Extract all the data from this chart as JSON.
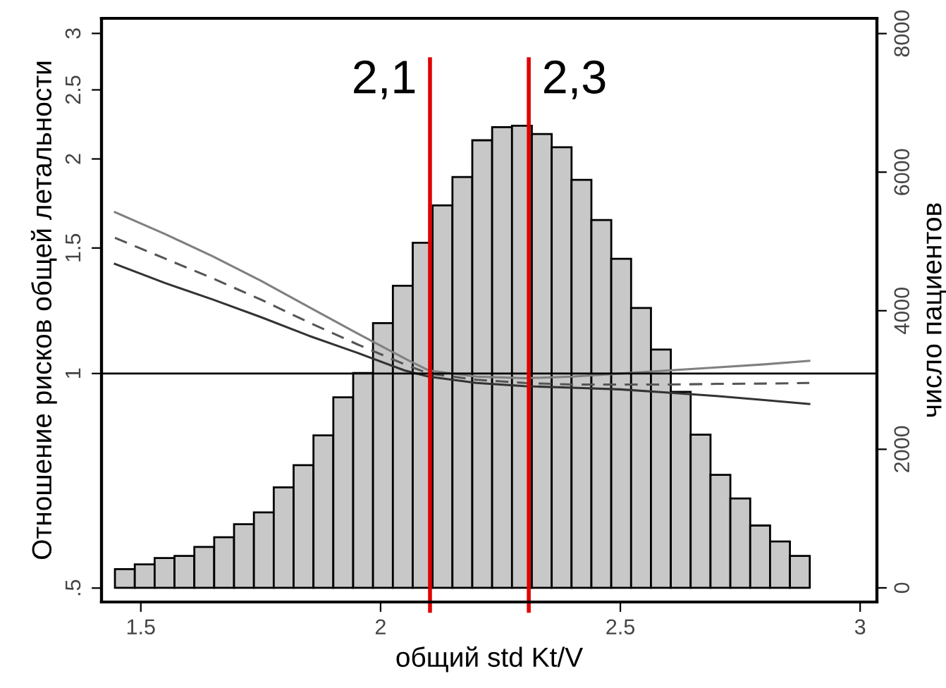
{
  "chart_data": {
    "type": "histogram",
    "xlabel": "общий std Kt/V",
    "ylabel": "Отношение рисков общей летальности",
    "y2label": "число пациентов",
    "xlim": [
      1.418,
      3.035
    ],
    "xticks": [
      1.5,
      2,
      {
        "value": 2.5,
        "label": "2.5"
      },
      3
    ],
    "log": "y",
    "ylim": [
      0.478,
      3.15
    ],
    "yticks": [
      {
        "value": 0.5,
        "label": ".5"
      },
      1,
      1.5,
      2,
      2.5,
      3
    ],
    "y2lim": [
      -204,
      8220
    ],
    "y2ticks": [
      0,
      2000,
      4000,
      6000,
      8000
    ],
    "grid": false,
    "series": [
      {
        "axis": "y2",
        "color": "#c8c8c8",
        "bins": [
          1.446,
          1.4874,
          1.5288,
          1.5702,
          1.6116,
          1.653,
          1.6944,
          1.7358,
          1.7772,
          1.8186,
          1.86,
          1.9014,
          1.9428,
          1.9842,
          2.0256,
          2.067,
          2.1084,
          2.1498,
          2.1912,
          2.2326,
          2.274,
          2.3154,
          2.3568,
          2.3982,
          2.4396,
          2.481,
          2.5224,
          2.5638,
          2.6052,
          2.6466,
          2.688,
          2.7294,
          2.7708,
          2.8122,
          2.8536,
          2.895
        ],
        "values": [
          270,
          340,
          430,
          460,
          590,
          730,
          920,
          1090,
          1450,
          1770,
          2200,
          2750,
          3100,
          3820,
          4360,
          4980,
          5520,
          5930,
          6460,
          6650,
          6670,
          6550,
          6360,
          5890,
          5310,
          4750,
          4040,
          3440,
          2830,
          2210,
          1630,
          1290,
          900,
          670,
          460
        ]
      },
      {
        "type": "line",
        "color": "#808080",
        "line_style": "solid",
        "x": [
          1.446,
          1.55,
          1.65,
          1.75,
          1.85,
          1.95,
          2.05,
          2.1,
          2.2,
          2.3,
          2.4,
          2.5,
          2.6,
          2.7,
          2.8,
          2.894
        ],
        "values": [
          1.684,
          1.57,
          1.46,
          1.35,
          1.24,
          1.14,
          1.05,
          1.01,
          0.99,
          0.985,
          0.99,
          1.0,
          1.01,
          1.02,
          1.03,
          1.042
        ]
      },
      {
        "type": "line",
        "color": "#555555",
        "line_style": "dashed",
        "x": [
          1.446,
          1.55,
          1.65,
          1.75,
          1.85,
          1.95,
          2.05,
          2.1,
          2.2,
          2.3,
          2.4,
          2.5,
          2.6,
          2.7,
          2.8,
          2.894
        ],
        "values": [
          1.55,
          1.45,
          1.36,
          1.27,
          1.18,
          1.1,
          1.03,
          1.0,
          0.98,
          0.97,
          0.965,
          0.965,
          0.965,
          0.967,
          0.968,
          0.97
        ]
      },
      {
        "type": "line",
        "color": "#333333",
        "line_style": "solid",
        "x": [
          1.446,
          1.55,
          1.65,
          1.75,
          1.85,
          1.95,
          2.05,
          2.1,
          2.2,
          2.3,
          2.4,
          2.5,
          2.6,
          2.7,
          2.8,
          2.894
        ],
        "values": [
          1.425,
          1.34,
          1.27,
          1.2,
          1.13,
          1.07,
          1.01,
          0.99,
          0.97,
          0.96,
          0.955,
          0.95,
          0.94,
          0.93,
          0.918,
          0.906
        ]
      }
    ],
    "ref_lines": [
      {
        "axis": "y",
        "value": 1,
        "color": "#000000"
      },
      {
        "axis": "x",
        "value": 2.103,
        "label": "2,1",
        "color": "#e00000"
      },
      {
        "axis": "x",
        "value": 2.309,
        "label": "2,3",
        "color": "#e00000"
      }
    ]
  }
}
